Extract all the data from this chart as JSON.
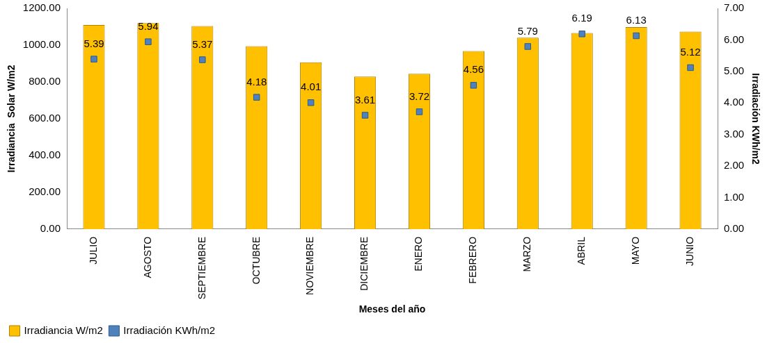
{
  "chart_data": {
    "type": "bar",
    "xlabel": "Meses del año",
    "ylabel": "Irradiancia  Solar W/m2",
    "y2label": "Irradiación KWh/m2",
    "categories": [
      "JULIO",
      "AGOSTO",
      "SEPTIEMBRE",
      "OCTUBRE",
      "NOVIEMBRE",
      "DICIEMBRE",
      "ENERO",
      "FEBRERO",
      "MARZO",
      "ABRIL",
      "MAYO",
      "JUNIO"
    ],
    "series": [
      {
        "name": "Irradiancia W/m2",
        "color": "#ffc000",
        "values": [
          1109,
          1120,
          1104,
          994,
          907,
          829,
          844,
          968,
          1041,
          1066,
          1098,
          1074
        ]
      },
      {
        "name": "Irradiación KWh/m2",
        "type": "scatter",
        "axis": "y2",
        "color": "#4f81bd",
        "marker": "square",
        "x": [
          "JULIO",
          "AGOSTO",
          "SEPTIEMBRE",
          "OCTUBRE",
          "NOVIEMBRE",
          "DICIEMBRE",
          "ENERO",
          "FEBRERO",
          "MARZO",
          "ABRIL",
          "MAYO",
          "JUNIO"
        ],
        "values": [
          5.39,
          5.94,
          5.37,
          4.18,
          4.01,
          3.61,
          3.72,
          4.56,
          5.79,
          6.19,
          6.13,
          5.12
        ],
        "value_labels": [
          "5.39",
          "5.94",
          "5.37",
          "4.18",
          "4.01",
          "3.61",
          "3.72",
          "4.56",
          "5.79",
          "6.19",
          "6.13",
          "5.12"
        ]
      }
    ],
    "ylim": [
      0,
      1200
    ],
    "yticks": [
      {
        "value": 0,
        "label": "0.00"
      },
      {
        "value": 200,
        "label": "200.00"
      },
      {
        "value": 400,
        "label": "400.00"
      },
      {
        "value": 600,
        "label": "600.00"
      },
      {
        "value": 800,
        "label": "800.00"
      },
      {
        "value": 1000,
        "label": "1000.00"
      },
      {
        "value": 1200,
        "label": "1200.00"
      }
    ],
    "y2lim": [
      0,
      7
    ],
    "y2ticks": [
      {
        "value": 0,
        "label": "0.00"
      },
      {
        "value": 1,
        "label": "1.00"
      },
      {
        "value": 2,
        "label": "2.00"
      },
      {
        "value": 3,
        "label": "3.00"
      },
      {
        "value": 4,
        "label": "4.00"
      },
      {
        "value": 5,
        "label": "5.00"
      },
      {
        "value": 6,
        "label": "6.00"
      },
      {
        "value": 7,
        "label": "7.00"
      }
    ],
    "grid": false,
    "legend": "bottom left"
  }
}
